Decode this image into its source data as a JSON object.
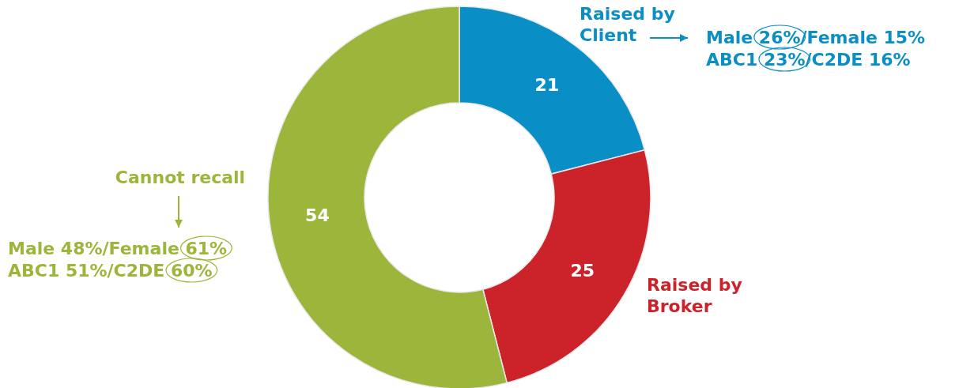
{
  "chart_data": {
    "type": "donut",
    "categories": [
      "Raised by Client",
      "Raised by Broker",
      "Cannot recall"
    ],
    "values": [
      21,
      25,
      54
    ],
    "colors": [
      "#0a8ec6",
      "#cc232b",
      "#9cb53b"
    ],
    "data_labels": true,
    "annotations": [
      "Male 26%/Female 15%",
      "ABC1 23%/C2DE 16%",
      "Male 48%/Female 61%",
      "ABC1 51%/C2DE 60%"
    ]
  }
}
